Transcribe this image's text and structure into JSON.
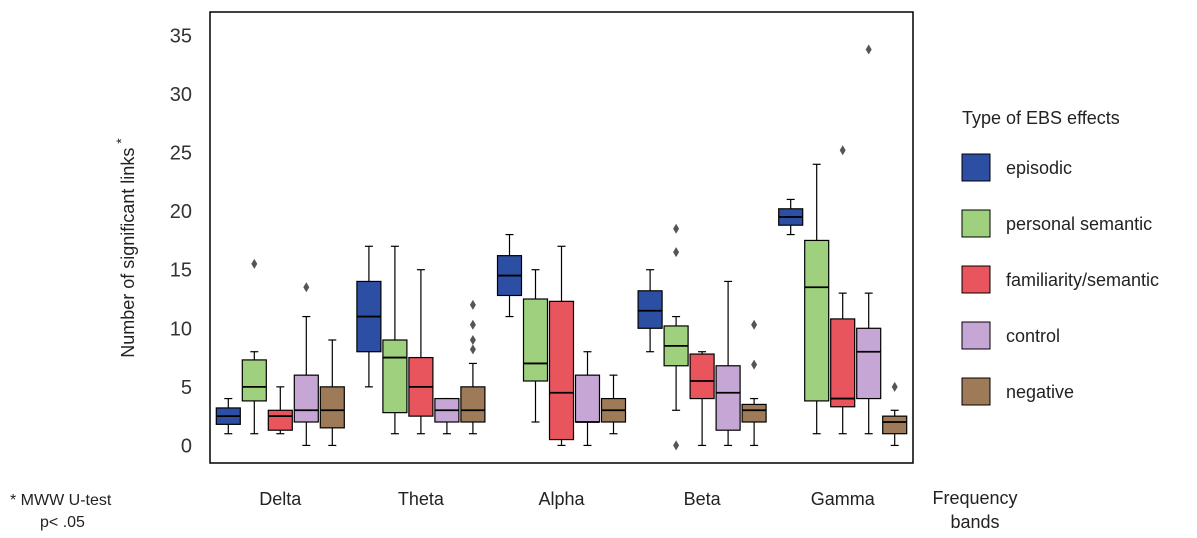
{
  "chart_data": {
    "type": "box",
    "ylabel": "Number of significant links",
    "ylabel_marker": "*",
    "xlabel_lines": [
      "Frequency",
      "bands"
    ],
    "categories": [
      "Delta",
      "Theta",
      "Alpha",
      "Beta",
      "Gamma"
    ],
    "ylim": [
      -1.5,
      37
    ],
    "yticks": [
      0,
      5,
      10,
      15,
      20,
      25,
      30,
      35
    ],
    "grid": false,
    "legend": {
      "title": "Type of EBS effects",
      "placement": "right"
    },
    "footnote": [
      "* MWW U-test",
      "p< .05"
    ],
    "series": [
      {
        "name": "episodic",
        "color": "#2c4fa3",
        "boxes": [
          {
            "whislo": 1,
            "q1": 1.8,
            "med": 2.5,
            "q3": 3.2,
            "whishi": 4,
            "fliers": []
          },
          {
            "whislo": 5,
            "q1": 8,
            "med": 11,
            "q3": 14,
            "whishi": 17,
            "fliers": []
          },
          {
            "whislo": 11,
            "q1": 12.8,
            "med": 14.5,
            "q3": 16.2,
            "whishi": 18,
            "fliers": []
          },
          {
            "whislo": 8,
            "q1": 10,
            "med": 11.5,
            "q3": 13.2,
            "whishi": 15,
            "fliers": []
          },
          {
            "whislo": 18,
            "q1": 18.8,
            "med": 19.5,
            "q3": 20.2,
            "whishi": 21,
            "fliers": []
          }
        ]
      },
      {
        "name": "personal semantic",
        "color": "#9fd07e",
        "boxes": [
          {
            "whislo": 1,
            "q1": 3.8,
            "med": 5,
            "q3": 7.3,
            "whishi": 8,
            "fliers": [
              15.5
            ]
          },
          {
            "whislo": 1,
            "q1": 2.8,
            "med": 7.5,
            "q3": 9,
            "whishi": 17,
            "fliers": []
          },
          {
            "whislo": 2,
            "q1": 5.5,
            "med": 7,
            "q3": 12.5,
            "whishi": 15,
            "fliers": []
          },
          {
            "whislo": 3,
            "q1": 6.8,
            "med": 8.5,
            "q3": 10.2,
            "whishi": 11,
            "fliers": [
              0,
              18.5,
              16.5
            ]
          },
          {
            "whislo": 1,
            "q1": 3.8,
            "med": 13.5,
            "q3": 17.5,
            "whishi": 24,
            "fliers": []
          }
        ]
      },
      {
        "name": "familiarity/semantic",
        "color": "#e8555c",
        "boxes": [
          {
            "whislo": 1,
            "q1": 1.3,
            "med": 2.5,
            "q3": 3,
            "whishi": 5,
            "fliers": []
          },
          {
            "whislo": 1,
            "q1": 2.5,
            "med": 5,
            "q3": 7.5,
            "whishi": 15,
            "fliers": []
          },
          {
            "whislo": 0,
            "q1": 0.5,
            "med": 4.5,
            "q3": 12.3,
            "whishi": 17,
            "fliers": []
          },
          {
            "whislo": 0,
            "q1": 4,
            "med": 5.5,
            "q3": 7.8,
            "whishi": 8,
            "fliers": []
          },
          {
            "whislo": 1,
            "q1": 3.3,
            "med": 4,
            "q3": 10.8,
            "whishi": 13,
            "fliers": [
              25.2
            ]
          }
        ]
      },
      {
        "name": "control",
        "color": "#c5a6d4",
        "boxes": [
          {
            "whislo": 0,
            "q1": 2,
            "med": 3,
            "q3": 6,
            "whishi": 11,
            "fliers": [
              13.5
            ]
          },
          {
            "whislo": 1,
            "q1": 2,
            "med": 3,
            "q3": 4,
            "whishi": 4,
            "fliers": []
          },
          {
            "whislo": 0,
            "q1": 2,
            "med": 2,
            "q3": 6,
            "whishi": 8,
            "fliers": []
          },
          {
            "whislo": 0,
            "q1": 1.3,
            "med": 4.5,
            "q3": 6.8,
            "whishi": 14,
            "fliers": []
          },
          {
            "whislo": 1,
            "q1": 4,
            "med": 8,
            "q3": 10,
            "whishi": 13,
            "fliers": [
              33.8
            ]
          }
        ]
      },
      {
        "name": "negative",
        "color": "#9e7a58",
        "boxes": [
          {
            "whislo": 0,
            "q1": 1.5,
            "med": 3,
            "q3": 5,
            "whishi": 9,
            "fliers": []
          },
          {
            "whislo": 1,
            "q1": 2,
            "med": 3,
            "q3": 5,
            "whishi": 7,
            "fliers": [
              12,
              10.3,
              9,
              8.2
            ]
          },
          {
            "whislo": 1,
            "q1": 2,
            "med": 3,
            "q3": 4,
            "whishi": 6,
            "fliers": []
          },
          {
            "whislo": 0,
            "q1": 2,
            "med": 3,
            "q3": 3.5,
            "whishi": 4,
            "fliers": [
              10.3,
              6.9
            ]
          },
          {
            "whislo": 0,
            "q1": 1,
            "med": 2,
            "q3": 2.5,
            "whishi": 3,
            "fliers": [
              5
            ]
          }
        ]
      }
    ]
  }
}
